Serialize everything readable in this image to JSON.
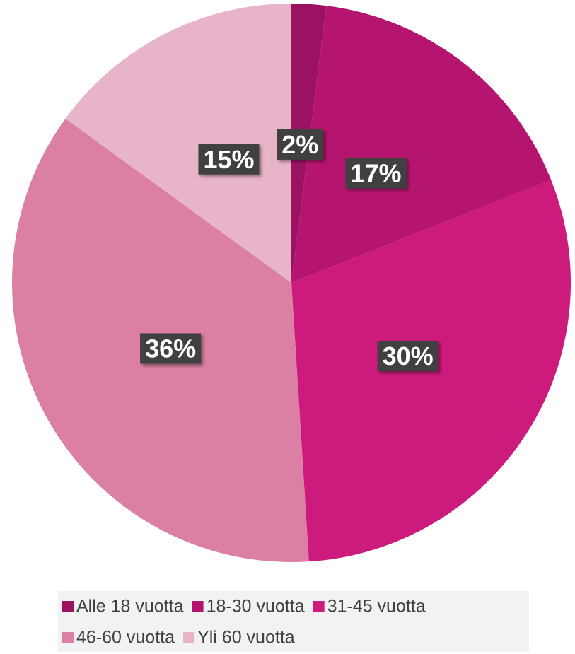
{
  "chart_data": {
    "type": "pie",
    "categories": [
      "Alle 18 vuotta",
      "18-30 vuotta",
      "31-45 vuotta",
      "46-60 vuotta",
      "Yli 60 vuotta"
    ],
    "values": [
      2,
      17,
      30,
      36,
      15
    ],
    "value_labels": [
      "2%",
      "17%",
      "30%",
      "36%",
      "15%"
    ],
    "colors": [
      "#9c1262",
      "#b5156f",
      "#cc1a7d",
      "#db80a4",
      "#e8b4c9"
    ],
    "legend": "bottom"
  }
}
